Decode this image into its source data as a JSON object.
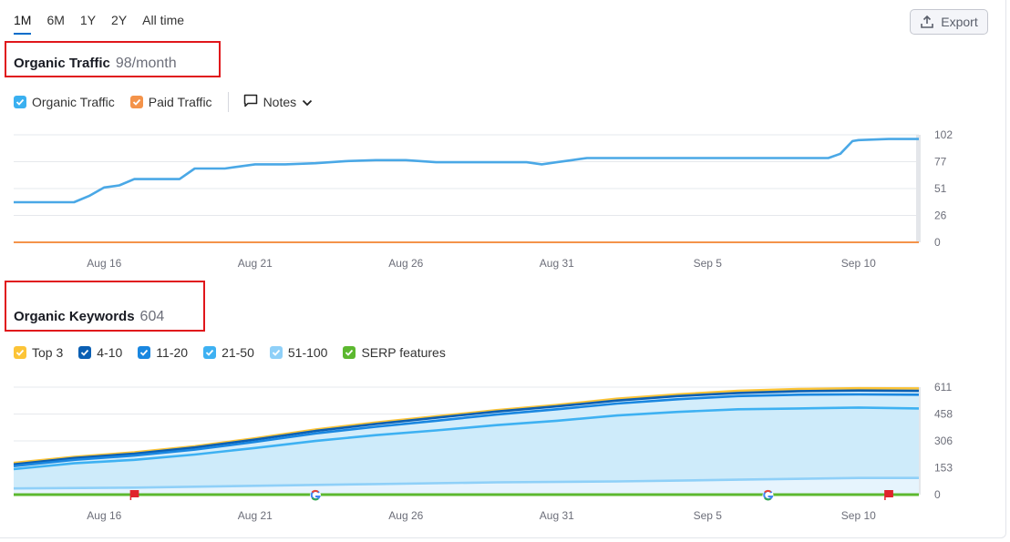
{
  "period_tabs": [
    {
      "label": "1M",
      "active": true
    },
    {
      "label": "6M",
      "active": false
    },
    {
      "label": "1Y",
      "active": false
    },
    {
      "label": "2Y",
      "active": false
    },
    {
      "label": "All time",
      "active": false
    }
  ],
  "export": {
    "label": "Export",
    "icon": "upload-icon"
  },
  "traffic_section": {
    "title": "Organic Traffic",
    "value": "98/month",
    "legend": [
      {
        "label": "Organic Traffic",
        "color": "#3ab0f0",
        "checked": true
      },
      {
        "label": "Paid Traffic",
        "color": "#f4934a",
        "checked": true
      }
    ],
    "notes_label": "Notes"
  },
  "keywords_section": {
    "title": "Organic Keywords",
    "value": "604",
    "legend": [
      {
        "label": "Top 3",
        "color": "#fcc437",
        "checked": true
      },
      {
        "label": "4-10",
        "color": "#0b5fb3",
        "checked": true
      },
      {
        "label": "11-20",
        "color": "#1a87e0",
        "checked": true
      },
      {
        "label": "21-50",
        "color": "#3eb1f2",
        "checked": true
      },
      {
        "label": "51-100",
        "color": "#8fd0f8",
        "checked": true
      },
      {
        "label": "SERP features",
        "color": "#5cb82f",
        "checked": true
      }
    ]
  },
  "colors": {
    "accent": "#006dca",
    "highlight_box": "#e0161b",
    "grid": "#e6e8ec"
  },
  "chart_data": [
    {
      "type": "line",
      "x_tick_labels": [
        "Aug 16",
        "Aug 21",
        "Aug 26",
        "Aug 31",
        "Sep 5",
        "Sep 10"
      ],
      "y_tick_labels": [
        "0",
        "26",
        "51",
        "77",
        "102"
      ],
      "ylim": [
        0,
        102
      ],
      "x_index_range": [
        0,
        30
      ],
      "x_tick_indices": [
        3,
        8,
        13,
        18,
        23,
        28
      ],
      "grid": true,
      "series": [
        {
          "name": "Organic Traffic",
          "color": "#4aa8e6",
          "x": [
            0,
            1,
            2,
            2.5,
            3,
            3.5,
            4,
            5,
            5.5,
            6,
            6.5,
            7,
            7.5,
            8,
            9,
            10,
            11,
            12,
            13,
            14,
            15,
            16,
            17,
            17.5,
            18,
            18.5,
            19,
            20,
            21,
            22,
            23,
            24,
            25,
            26,
            27,
            27.4,
            27.8,
            28,
            29,
            30
          ],
          "values": [
            38,
            38,
            38,
            44,
            52,
            54,
            60,
            60,
            60,
            70,
            70,
            70,
            72,
            74,
            74,
            75,
            77,
            78,
            78,
            76,
            76,
            76,
            76,
            74,
            76,
            78,
            80,
            80,
            80,
            80,
            80,
            80,
            80,
            80,
            80,
            84,
            96,
            97,
            98,
            98
          ]
        },
        {
          "name": "Paid Traffic",
          "color": "#f4934a",
          "x": [
            0,
            30
          ],
          "values": [
            0,
            0
          ]
        }
      ]
    },
    {
      "type": "area",
      "x_tick_labels": [
        "Aug 16",
        "Aug 21",
        "Aug 26",
        "Aug 31",
        "Sep 5",
        "Sep 10"
      ],
      "y_tick_labels": [
        "0",
        "153",
        "306",
        "458",
        "611"
      ],
      "ylim": [
        0,
        611
      ],
      "x_index_range": [
        0,
        30
      ],
      "x_tick_indices": [
        3,
        8,
        13,
        18,
        23,
        28
      ],
      "grid": true,
      "series": [
        {
          "name": "Top 3",
          "color": "#fcc437",
          "x": [
            0,
            2,
            4,
            6,
            8,
            10,
            12,
            14,
            16,
            18,
            20,
            22,
            24,
            26,
            28,
            30
          ],
          "values": [
            180,
            215,
            240,
            275,
            320,
            370,
            410,
            445,
            480,
            510,
            545,
            570,
            590,
            600,
            605,
            604
          ]
        },
        {
          "name": "4-10",
          "color": "#0b5fb3",
          "x": [
            0,
            2,
            4,
            6,
            8,
            10,
            12,
            14,
            16,
            18,
            20,
            22,
            24,
            26,
            28,
            30
          ],
          "values": [
            172,
            208,
            233,
            268,
            313,
            362,
            402,
            437,
            472,
            502,
            535,
            560,
            578,
            588,
            592,
            590
          ]
        },
        {
          "name": "11-20",
          "color": "#1a87e0",
          "x": [
            0,
            2,
            4,
            6,
            8,
            10,
            12,
            14,
            16,
            18,
            20,
            22,
            24,
            26,
            28,
            30
          ],
          "values": [
            162,
            198,
            222,
            256,
            300,
            348,
            386,
            420,
            455,
            485,
            518,
            542,
            560,
            568,
            570,
            568
          ]
        },
        {
          "name": "21-50",
          "color": "#3eb1f2",
          "x": [
            0,
            2,
            4,
            6,
            8,
            10,
            12,
            14,
            16,
            18,
            20,
            22,
            24,
            26,
            28,
            30
          ],
          "values": [
            145,
            178,
            198,
            228,
            265,
            305,
            338,
            365,
            395,
            420,
            450,
            470,
            485,
            490,
            495,
            490
          ]
        },
        {
          "name": "51-100",
          "color": "#8fd0f8",
          "x": [
            0,
            4,
            8,
            12,
            16,
            20,
            24,
            28,
            30
          ],
          "values": [
            35,
            40,
            50,
            60,
            70,
            75,
            85,
            95,
            95
          ]
        },
        {
          "name": "SERP features",
          "color": "#5cb82f",
          "x": [
            0,
            30
          ],
          "values": [
            0,
            0
          ]
        }
      ],
      "event_markers": [
        {
          "type": "flag",
          "x": 4
        },
        {
          "type": "google",
          "x": 10
        },
        {
          "type": "google",
          "x": 25
        },
        {
          "type": "flag",
          "x": 29
        }
      ]
    }
  ]
}
